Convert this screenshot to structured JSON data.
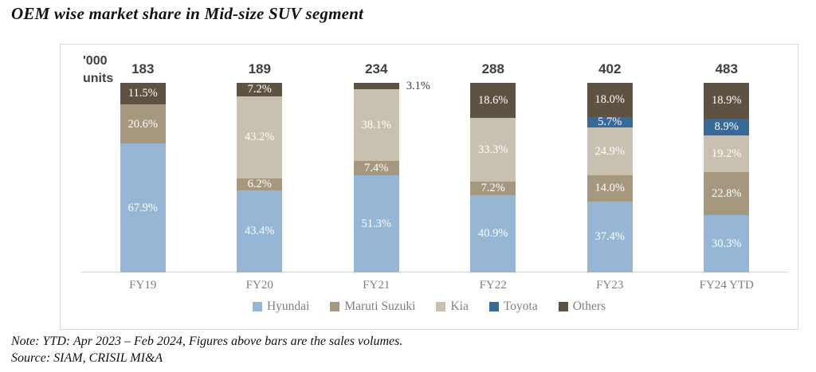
{
  "title": "OEM wise market share in Mid-size SUV segment",
  "units_label": "'000 units",
  "note": "Note: YTD: Apr 2023 – Feb 2024, Figures above bars are the sales volumes.",
  "source": "Source: SIAM, CRISIL MI&A",
  "colors": {
    "hyundai": "#95b6d4",
    "maruti_suzuki": "#a6977f",
    "kia": "#c8c0b0",
    "toyota": "#366a99",
    "others": "#5e5243",
    "total_label": "#3f3f3f",
    "axis_text": "#7f7f7f",
    "axis_line": "#d9d9d9",
    "panel_border": "#d9d9d9",
    "segment_label": "#ffffff"
  },
  "chart_data": {
    "type": "bar",
    "subtype": "stacked-100-percent-column",
    "title": "OEM wise market share in Mid-size SUV segment",
    "ylabel": "'000 units",
    "grid": false,
    "legend_position": "bottom",
    "categories": [
      "FY19",
      "FY20",
      "FY21",
      "FY22",
      "FY23",
      "FY24 YTD"
    ],
    "totals_000_units": [
      183,
      189,
      234,
      288,
      402,
      483
    ],
    "series": [
      {
        "name": "Hyundai",
        "color": "#95b6d4",
        "values": [
          67.9,
          43.4,
          51.3,
          40.9,
          37.4,
          30.3
        ]
      },
      {
        "name": "Maruti Suzuki",
        "color": "#a6977f",
        "values": [
          20.6,
          6.2,
          7.4,
          7.2,
          14.0,
          22.8
        ]
      },
      {
        "name": "Kia",
        "color": "#c8c0b0",
        "values": [
          null,
          43.2,
          38.1,
          33.3,
          24.9,
          19.2
        ]
      },
      {
        "name": "Toyota",
        "color": "#366a99",
        "values": [
          null,
          null,
          null,
          null,
          5.7,
          8.9
        ]
      },
      {
        "name": "Others",
        "color": "#5e5243",
        "values": [
          11.5,
          7.2,
          3.1,
          18.6,
          18.0,
          18.9
        ]
      }
    ],
    "legend": [
      "Hyundai",
      "Maruti Suzuki",
      "Kia",
      "Toyota",
      "Others"
    ],
    "value_label_format": "one-decimal-percent",
    "labels_outside": [
      {
        "category": "FY21",
        "series": "Others",
        "label": "3.1%"
      }
    ]
  }
}
